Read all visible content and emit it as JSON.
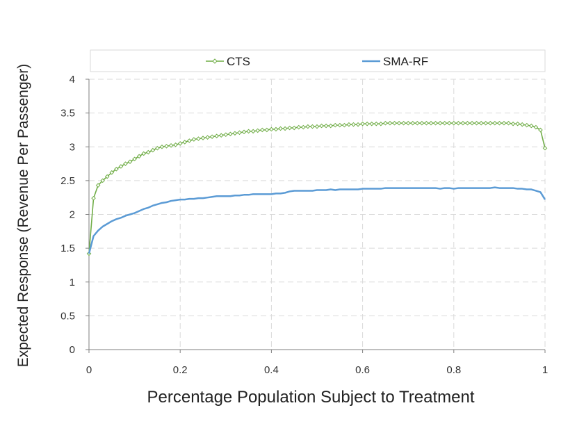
{
  "chart_data": {
    "type": "line",
    "title": "",
    "xlabel": "Percentage Population Subject to Treatment",
    "ylabel": "Expected Response (Revenue Per Passenger)",
    "xlim": [
      0,
      1
    ],
    "ylim": [
      0,
      4
    ],
    "x_ticks": [
      "0",
      "0.2",
      "0.4",
      "0.6",
      "0.8",
      "1"
    ],
    "y_ticks": [
      "0",
      "0.5",
      "1",
      "1.5",
      "2",
      "2.5",
      "3",
      "3.5",
      "4"
    ],
    "grid": true,
    "legend_position": "top",
    "x": [
      0,
      0.01,
      0.02,
      0.03,
      0.04,
      0.05,
      0.06,
      0.07,
      0.08,
      0.09,
      0.1,
      0.11,
      0.12,
      0.13,
      0.14,
      0.15,
      0.16,
      0.17,
      0.18,
      0.19,
      0.2,
      0.21,
      0.22,
      0.23,
      0.24,
      0.25,
      0.26,
      0.27,
      0.28,
      0.29,
      0.3,
      0.31,
      0.32,
      0.33,
      0.34,
      0.35,
      0.36,
      0.37,
      0.38,
      0.39,
      0.4,
      0.41,
      0.42,
      0.43,
      0.44,
      0.45,
      0.46,
      0.47,
      0.48,
      0.49,
      0.5,
      0.51,
      0.52,
      0.53,
      0.54,
      0.55,
      0.56,
      0.57,
      0.58,
      0.59,
      0.6,
      0.61,
      0.62,
      0.63,
      0.64,
      0.65,
      0.66,
      0.67,
      0.68,
      0.69,
      0.7,
      0.71,
      0.72,
      0.73,
      0.74,
      0.75,
      0.76,
      0.77,
      0.78,
      0.79,
      0.8,
      0.81,
      0.82,
      0.83,
      0.84,
      0.85,
      0.86,
      0.87,
      0.88,
      0.89,
      0.9,
      0.91,
      0.92,
      0.93,
      0.94,
      0.95,
      0.96,
      0.97,
      0.98,
      0.99,
      1.0
    ],
    "series": [
      {
        "name": "CTS",
        "color": "#70ad47",
        "marker": "diamond",
        "values": [
          1.42,
          2.24,
          2.43,
          2.5,
          2.56,
          2.62,
          2.67,
          2.71,
          2.75,
          2.78,
          2.82,
          2.86,
          2.9,
          2.92,
          2.95,
          2.98,
          3.0,
          3.01,
          3.02,
          3.03,
          3.05,
          3.07,
          3.09,
          3.11,
          3.12,
          3.13,
          3.14,
          3.15,
          3.16,
          3.17,
          3.18,
          3.19,
          3.2,
          3.21,
          3.22,
          3.23,
          3.23,
          3.24,
          3.25,
          3.25,
          3.26,
          3.26,
          3.27,
          3.27,
          3.28,
          3.28,
          3.29,
          3.29,
          3.3,
          3.3,
          3.3,
          3.31,
          3.31,
          3.31,
          3.32,
          3.32,
          3.32,
          3.33,
          3.33,
          3.33,
          3.34,
          3.34,
          3.34,
          3.34,
          3.34,
          3.35,
          3.35,
          3.35,
          3.35,
          3.35,
          3.35,
          3.35,
          3.35,
          3.35,
          3.35,
          3.35,
          3.35,
          3.35,
          3.35,
          3.35,
          3.35,
          3.35,
          3.35,
          3.35,
          3.35,
          3.35,
          3.35,
          3.35,
          3.35,
          3.35,
          3.35,
          3.35,
          3.35,
          3.34,
          3.34,
          3.33,
          3.32,
          3.31,
          3.29,
          3.25,
          2.98
        ]
      },
      {
        "name": "SMA-RF",
        "color": "#5b9bd5",
        "marker": "none",
        "values": [
          1.42,
          1.68,
          1.76,
          1.82,
          1.86,
          1.9,
          1.93,
          1.95,
          1.98,
          2.0,
          2.02,
          2.05,
          2.08,
          2.1,
          2.13,
          2.15,
          2.17,
          2.18,
          2.2,
          2.21,
          2.22,
          2.22,
          2.23,
          2.23,
          2.24,
          2.24,
          2.25,
          2.26,
          2.27,
          2.27,
          2.27,
          2.27,
          2.28,
          2.28,
          2.29,
          2.29,
          2.3,
          2.3,
          2.3,
          2.3,
          2.3,
          2.31,
          2.31,
          2.32,
          2.34,
          2.35,
          2.35,
          2.35,
          2.35,
          2.35,
          2.36,
          2.36,
          2.36,
          2.37,
          2.36,
          2.37,
          2.37,
          2.37,
          2.37,
          2.37,
          2.38,
          2.38,
          2.38,
          2.38,
          2.38,
          2.39,
          2.39,
          2.39,
          2.39,
          2.39,
          2.39,
          2.39,
          2.39,
          2.39,
          2.39,
          2.39,
          2.39,
          2.38,
          2.39,
          2.39,
          2.38,
          2.39,
          2.39,
          2.39,
          2.39,
          2.39,
          2.39,
          2.39,
          2.39,
          2.4,
          2.39,
          2.39,
          2.39,
          2.39,
          2.38,
          2.38,
          2.37,
          2.37,
          2.35,
          2.33,
          2.22
        ]
      }
    ]
  }
}
